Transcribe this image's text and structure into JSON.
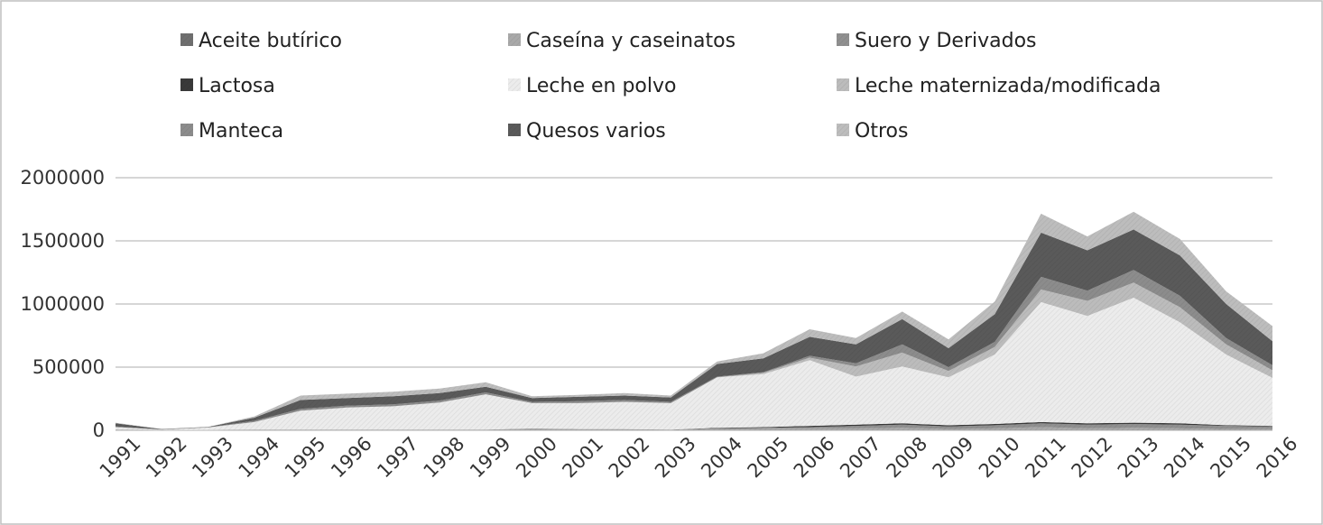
{
  "chart_data": {
    "type": "area",
    "stacked": true,
    "title": "",
    "xlabel": "",
    "ylabel": "",
    "ylim": [
      0,
      2000000
    ],
    "yticks": [
      0,
      500000,
      1000000,
      1500000,
      2000000
    ],
    "grid": true,
    "legend_position": "top",
    "categories": [
      "1991",
      "1992",
      "1993",
      "1994",
      "1995",
      "1996",
      "1997",
      "1998",
      "1999",
      "2000",
      "2001",
      "2002",
      "2003",
      "2004",
      "2005",
      "2006",
      "2007",
      "2008",
      "2009",
      "2010",
      "2011",
      "2012",
      "2013",
      "2014",
      "2015",
      "2016"
    ],
    "series": [
      {
        "name": "Aceite butírico",
        "color": "#6f6f6f",
        "values": [
          0,
          0,
          0,
          0,
          0,
          0,
          0,
          0,
          0,
          0,
          0,
          0,
          0,
          0,
          0,
          0,
          0,
          0,
          0,
          0,
          0,
          0,
          0,
          0,
          0,
          0
        ]
      },
      {
        "name": "Caseína y caseinatos",
        "color": "#a9a9a9",
        "values": [
          5000,
          2000,
          2000,
          5000,
          5000,
          5000,
          5000,
          5000,
          5000,
          15000,
          10000,
          10000,
          5000,
          10000,
          15000,
          15000,
          15000,
          20000,
          10000,
          15000,
          25000,
          15000,
          20000,
          15000,
          10000,
          10000
        ]
      },
      {
        "name": "Suero y Derivados",
        "color": "#909090",
        "values": [
          0,
          0,
          0,
          0,
          0,
          0,
          0,
          0,
          0,
          0,
          0,
          0,
          0,
          5000,
          5000,
          10000,
          20000,
          25000,
          20000,
          25000,
          30000,
          30000,
          30000,
          30000,
          25000,
          20000
        ]
      },
      {
        "name": "Lactosa",
        "color": "#3a3a3a",
        "values": [
          0,
          0,
          0,
          0,
          0,
          0,
          0,
          0,
          0,
          0,
          0,
          0,
          0,
          5000,
          5000,
          10000,
          10000,
          10000,
          10000,
          10000,
          10000,
          10000,
          10000,
          10000,
          5000,
          5000
        ]
      },
      {
        "name": "Leche en polvo",
        "color": "#ececec",
        "values": [
          20000,
          3000,
          20000,
          60000,
          150000,
          175000,
          185000,
          215000,
          280000,
          200000,
          205000,
          215000,
          210000,
          400000,
          420000,
          520000,
          380000,
          450000,
          380000,
          550000,
          950000,
          850000,
          990000,
          800000,
          560000,
          380000
        ]
      },
      {
        "name": "Leche maternizada/modificada",
        "color": "#bcbcbc",
        "values": [
          0,
          0,
          0,
          0,
          0,
          0,
          0,
          0,
          0,
          0,
          0,
          0,
          0,
          0,
          10000,
          20000,
          80000,
          110000,
          50000,
          60000,
          100000,
          120000,
          120000,
          120000,
          80000,
          60000
        ]
      },
      {
        "name": "Manteca",
        "color": "#8c8c8c",
        "values": [
          5000,
          2000,
          2000,
          10000,
          15000,
          15000,
          15000,
          15000,
          15000,
          10000,
          15000,
          15000,
          10000,
          5000,
          5000,
          15000,
          25000,
          65000,
          30000,
          40000,
          100000,
          80000,
          100000,
          90000,
          50000,
          40000
        ]
      },
      {
        "name": "Quesos varios",
        "color": "#5a5a5a",
        "values": [
          25000,
          3000,
          3000,
          25000,
          70000,
          60000,
          65000,
          60000,
          45000,
          30000,
          35000,
          35000,
          35000,
          100000,
          110000,
          150000,
          150000,
          200000,
          150000,
          220000,
          350000,
          320000,
          320000,
          320000,
          270000,
          190000
        ]
      },
      {
        "name": "Otros",
        "color": "#bdbdbd",
        "values": [
          5000,
          0,
          0,
          10000,
          35000,
          35000,
          35000,
          35000,
          35000,
          15000,
          15000,
          20000,
          15000,
          20000,
          40000,
          60000,
          50000,
          60000,
          70000,
          100000,
          150000,
          110000,
          140000,
          130000,
          100000,
          120000
        ]
      }
    ]
  }
}
